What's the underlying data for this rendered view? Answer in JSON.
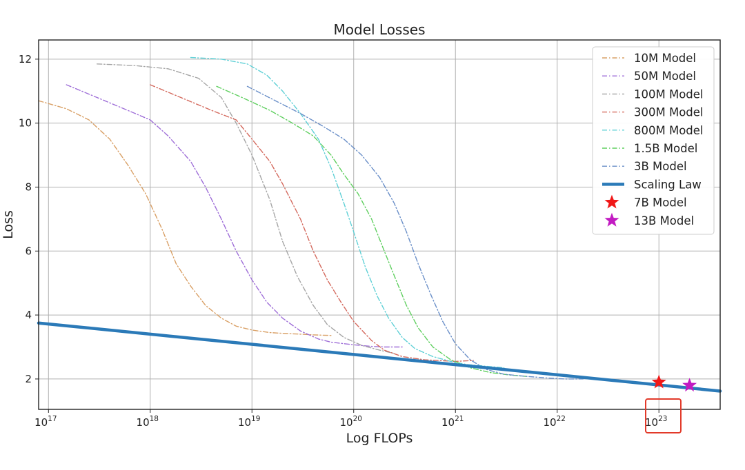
{
  "chart_data": {
    "type": "line",
    "title": "Model Losses",
    "xlabel": "Log FLOPs",
    "ylabel": "Loss",
    "x_scale": "log10",
    "xlim": [
      8e+16,
      4e+23
    ],
    "ylim": [
      1.05,
      12.6
    ],
    "x_ticks": [
      {
        "base": "10",
        "exp": "17",
        "value": 1e+17
      },
      {
        "base": "10",
        "exp": "18",
        "value": 1e+18
      },
      {
        "base": "10",
        "exp": "19",
        "value": 1e+19
      },
      {
        "base": "10",
        "exp": "20",
        "value": 1e+20
      },
      {
        "base": "10",
        "exp": "21",
        "value": 1e+21
      },
      {
        "base": "10",
        "exp": "22",
        "value": 1e+22
      },
      {
        "base": "10",
        "exp": "23",
        "value": 1e+23
      }
    ],
    "y_ticks": [
      "2",
      "4",
      "6",
      "8",
      "10",
      "12"
    ],
    "grid": true,
    "legend_position": "top-right",
    "series": [
      {
        "name": "10M Model",
        "color": "#d9a066",
        "style": "dashdot",
        "points": [
          [
            8e+16,
            10.7
          ],
          [
            1.5e+17,
            10.45
          ],
          [
            2.5e+17,
            10.1
          ],
          [
            4e+17,
            9.5
          ],
          [
            6e+17,
            8.7
          ],
          [
            9e+17,
            7.8
          ],
          [
            1.3e+18,
            6.7
          ],
          [
            1.8e+18,
            5.6
          ],
          [
            2.5e+18,
            4.9
          ],
          [
            3.5e+18,
            4.3
          ],
          [
            5e+18,
            3.9
          ],
          [
            7e+18,
            3.65
          ],
          [
            1e+19,
            3.53
          ],
          [
            1.5e+19,
            3.45
          ],
          [
            2.2e+19,
            3.42
          ],
          [
            3e+19,
            3.4
          ],
          [
            4e+19,
            3.38
          ],
          [
            6e+19,
            3.36
          ]
        ]
      },
      {
        "name": "50M Model",
        "color": "#9f6fd8",
        "style": "dashdot",
        "points": [
          [
            1.5e+17,
            11.2
          ],
          [
            3e+17,
            10.8
          ],
          [
            6e+17,
            10.4
          ],
          [
            1e+18,
            10.1
          ],
          [
            1.5e+18,
            9.6
          ],
          [
            2.5e+18,
            8.8
          ],
          [
            3.5e+18,
            8.0
          ],
          [
            5e+18,
            7.0
          ],
          [
            7e+18,
            6.0
          ],
          [
            1e+19,
            5.1
          ],
          [
            1.4e+19,
            4.4
          ],
          [
            2e+19,
            3.9
          ],
          [
            3e+19,
            3.5
          ],
          [
            4.5e+19,
            3.25
          ],
          [
            6e+19,
            3.15
          ],
          [
            1e+20,
            3.07
          ],
          [
            1.5e+20,
            3.02
          ],
          [
            2e+20,
            3.0
          ],
          [
            3e+20,
            3.0
          ]
        ]
      },
      {
        "name": "100M Model",
        "color": "#a5a5a5",
        "style": "dashdot",
        "points": [
          [
            3e+17,
            11.85
          ],
          [
            7e+17,
            11.8
          ],
          [
            1.5e+18,
            11.7
          ],
          [
            3e+18,
            11.4
          ],
          [
            5e+18,
            10.8
          ],
          [
            7e+18,
            10.0
          ],
          [
            1e+19,
            9.0
          ],
          [
            1.5e+19,
            7.6
          ],
          [
            2e+19,
            6.3
          ],
          [
            2.8e+19,
            5.2
          ],
          [
            4e+19,
            4.3
          ],
          [
            5.5e+19,
            3.7
          ],
          [
            8e+19,
            3.3
          ],
          [
            1.2e+20,
            3.05
          ],
          [
            1.8e+20,
            2.9
          ],
          [
            2.5e+20,
            2.8
          ]
        ]
      },
      {
        "name": "300M Model",
        "color": "#d46a5e",
        "style": "dashdot",
        "points": [
          [
            1e+18,
            11.2
          ],
          [
            2e+18,
            10.8
          ],
          [
            4e+18,
            10.4
          ],
          [
            7e+18,
            10.1
          ],
          [
            1e+19,
            9.5
          ],
          [
            1.5e+19,
            8.8
          ],
          [
            2e+19,
            8.1
          ],
          [
            3e+19,
            7.0
          ],
          [
            4e+19,
            6.0
          ],
          [
            5.5e+19,
            5.1
          ],
          [
            7.5e+19,
            4.4
          ],
          [
            1e+20,
            3.8
          ],
          [
            1.5e+20,
            3.2
          ],
          [
            2e+20,
            2.9
          ],
          [
            3e+20,
            2.7
          ],
          [
            5e+20,
            2.6
          ],
          [
            1e+21,
            2.55
          ],
          [
            1.5e+21,
            2.58
          ]
        ]
      },
      {
        "name": "800M Model",
        "color": "#5fd0d6",
        "style": "dashdot",
        "points": [
          [
            2.5e+18,
            12.05
          ],
          [
            5e+18,
            12.0
          ],
          [
            9e+18,
            11.85
          ],
          [
            1.4e+19,
            11.5
          ],
          [
            2e+19,
            11.0
          ],
          [
            3e+19,
            10.3
          ],
          [
            4.5e+19,
            9.5
          ],
          [
            6e+19,
            8.6
          ],
          [
            8e+19,
            7.5
          ],
          [
            1e+20,
            6.6
          ],
          [
            1.3e+20,
            5.5
          ],
          [
            1.7e+20,
            4.6
          ],
          [
            2.2e+20,
            3.9
          ],
          [
            3e+20,
            3.3
          ],
          [
            4e+20,
            2.95
          ],
          [
            6e+20,
            2.7
          ],
          [
            9e+20,
            2.55
          ],
          [
            1.3e+21,
            2.45
          ],
          [
            2e+21,
            2.4
          ],
          [
            3e+21,
            2.35
          ]
        ]
      },
      {
        "name": "1.5B Model",
        "color": "#5fcf5f",
        "style": "dashdot",
        "points": [
          [
            4.5e+18,
            11.15
          ],
          [
            8e+18,
            10.8
          ],
          [
            1.5e+19,
            10.4
          ],
          [
            2.5e+19,
            10.0
          ],
          [
            4e+19,
            9.6
          ],
          [
            6e+19,
            9.0
          ],
          [
            8e+19,
            8.4
          ],
          [
            1.1e+20,
            7.8
          ],
          [
            1.5e+20,
            7.0
          ],
          [
            2e+20,
            6.0
          ],
          [
            2.6e+20,
            5.1
          ],
          [
            3.3e+20,
            4.3
          ],
          [
            4.3e+20,
            3.6
          ],
          [
            6e+20,
            3.0
          ],
          [
            9e+20,
            2.6
          ],
          [
            1.4e+21,
            2.35
          ],
          [
            2.2e+21,
            2.2
          ],
          [
            3.5e+21,
            2.12
          ],
          [
            5e+21,
            2.08
          ]
        ]
      },
      {
        "name": "3B Model",
        "color": "#6a8fc8",
        "style": "dashdot",
        "points": [
          [
            9e+18,
            11.15
          ],
          [
            1.7e+19,
            10.7
          ],
          [
            3e+19,
            10.3
          ],
          [
            5e+19,
            9.9
          ],
          [
            8e+19,
            9.5
          ],
          [
            1.2e+20,
            9.0
          ],
          [
            1.8e+20,
            8.3
          ],
          [
            2.5e+20,
            7.5
          ],
          [
            3.3e+20,
            6.6
          ],
          [
            4.3e+20,
            5.6
          ],
          [
            5.8e+20,
            4.6
          ],
          [
            7.5e+20,
            3.8
          ],
          [
            1e+21,
            3.1
          ],
          [
            1.4e+21,
            2.6
          ],
          [
            2e+21,
            2.3
          ],
          [
            3e+21,
            2.15
          ],
          [
            5e+21,
            2.08
          ],
          [
            8e+21,
            2.03
          ],
          [
            1.2e+22,
            2.0
          ],
          [
            1.8e+22,
            2.0
          ]
        ]
      },
      {
        "name": "Scaling Law",
        "color": "#2b7ab8",
        "style": "solid",
        "points": [
          [
            8e+16,
            3.75
          ],
          [
            4e+23,
            1.62
          ]
        ]
      }
    ],
    "markers": [
      {
        "name": "7B Model",
        "color": "#f01818",
        "x": 1e+23,
        "y": 1.9
      },
      {
        "name": "13B Model",
        "color": "#c21bc2",
        "x": 2e+23,
        "y": 1.8
      }
    ],
    "annotation": {
      "type": "highlight-box",
      "color": "#e23a2a",
      "target_tick": "10^23"
    }
  }
}
